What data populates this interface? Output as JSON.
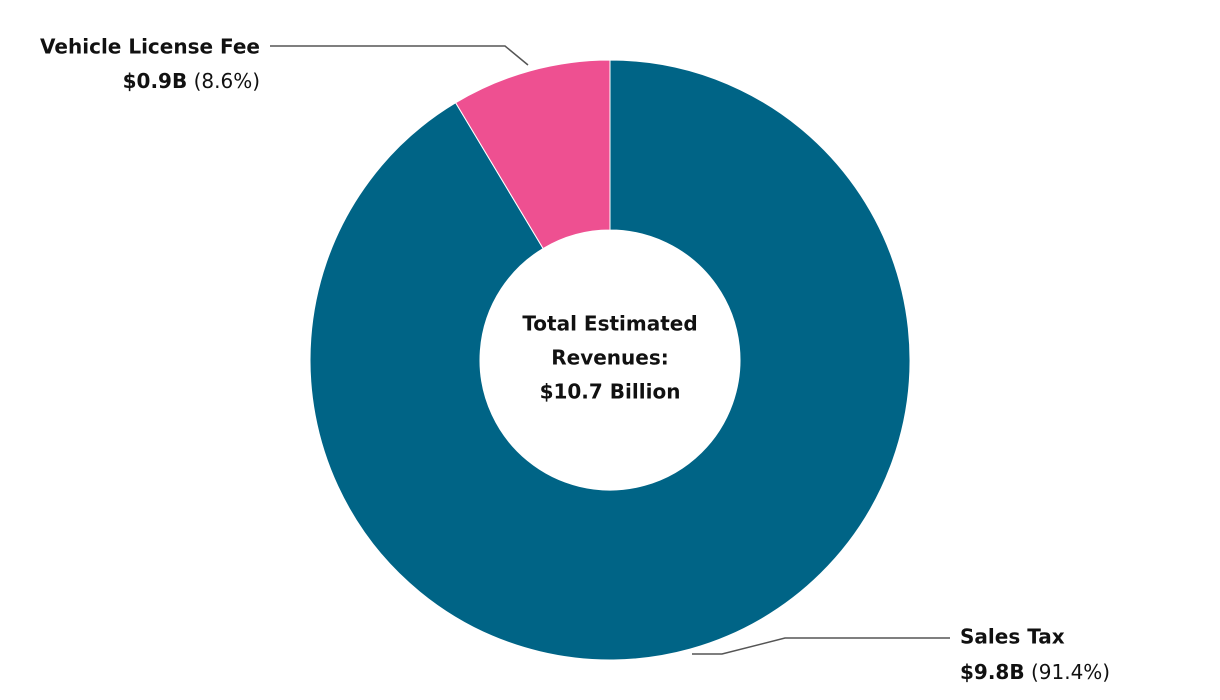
{
  "chart_data": {
    "type": "donut",
    "categories": [
      "Sales Tax",
      "Vehicle License Fee"
    ],
    "values": [
      91.4,
      8.6
    ],
    "value_labels": [
      "(91.4%)",
      "(8.6%)"
    ],
    "amount_labels": [
      "$9.8B",
      "$0.9B"
    ],
    "colors": [
      "#006486",
      "#ee5091"
    ],
    "center_label": [
      "Total Estimated",
      "Revenues:",
      "$10.7 Billion"
    ]
  }
}
